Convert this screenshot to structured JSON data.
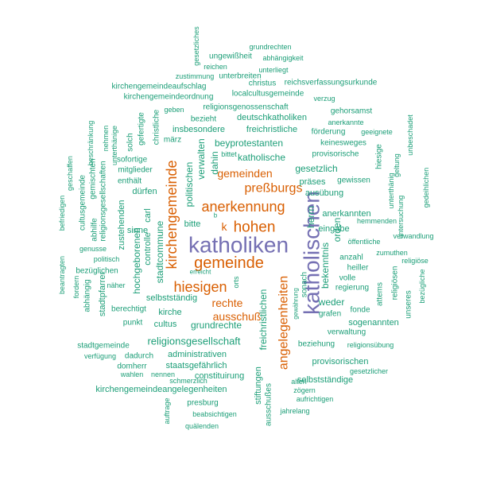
{
  "palette": {
    "green": "#1b9e77",
    "orange": "#d95f02",
    "purple": "#7570b3"
  },
  "words": [
    {
      "text": "katholiken",
      "color": "purple"
    },
    {
      "text": "katholischen",
      "color": "purple"
    },
    {
      "text": "gemeinde",
      "color": "orange"
    },
    {
      "text": "anerkennung",
      "color": "orange"
    },
    {
      "text": "kirchengemeinde",
      "color": "orange"
    },
    {
      "text": "hiesigen",
      "color": "orange"
    },
    {
      "text": "hohen",
      "color": "orange"
    },
    {
      "text": "k",
      "color": "orange"
    },
    {
      "text": "preßburgs",
      "color": "orange"
    },
    {
      "text": "gemeinden",
      "color": "orange"
    },
    {
      "text": "angelegenheiten",
      "color": "orange"
    },
    {
      "text": "rechte",
      "color": "orange"
    },
    {
      "text": "ausschuß",
      "color": "orange"
    },
    {
      "text": "grundrechten",
      "color": "green"
    },
    {
      "text": "gesetzliches",
      "color": "green"
    },
    {
      "text": "ungewißheit",
      "color": "green"
    },
    {
      "text": "abhängigkeit",
      "color": "green"
    },
    {
      "text": "reichen",
      "color": "green"
    },
    {
      "text": "unterliegt",
      "color": "green"
    },
    {
      "text": "zustimmung",
      "color": "green"
    },
    {
      "text": "unterbreiten",
      "color": "green"
    },
    {
      "text": "christus",
      "color": "green"
    },
    {
      "text": "reichsverfassungsurkunde",
      "color": "green"
    },
    {
      "text": "kirchengemeindeaufschlag",
      "color": "green"
    },
    {
      "text": "kirchengemeindeordnung",
      "color": "green"
    },
    {
      "text": "localcultusgemeinde",
      "color": "green"
    },
    {
      "text": "verzug",
      "color": "green"
    },
    {
      "text": "geben",
      "color": "green"
    },
    {
      "text": "religionsgenossenschaft",
      "color": "green"
    },
    {
      "text": "gehorsamst",
      "color": "green"
    },
    {
      "text": "bezieht",
      "color": "green"
    },
    {
      "text": "deutschkatholiken",
      "color": "green"
    },
    {
      "text": "anerkannte",
      "color": "green"
    },
    {
      "text": "insbesondere",
      "color": "green"
    },
    {
      "text": "freichristliche",
      "color": "green"
    },
    {
      "text": "förderung",
      "color": "green"
    },
    {
      "text": "geeignete",
      "color": "green"
    },
    {
      "text": "märz",
      "color": "green"
    },
    {
      "text": "beyprotestanten",
      "color": "green"
    },
    {
      "text": "keinesweges",
      "color": "green"
    },
    {
      "text": "bittet",
      "color": "green"
    },
    {
      "text": "katholische",
      "color": "green"
    },
    {
      "text": "provisorische",
      "color": "green"
    },
    {
      "text": "sofortige",
      "color": "green"
    },
    {
      "text": "mitglieder",
      "color": "green"
    },
    {
      "text": "enthält",
      "color": "green"
    },
    {
      "text": "gesetzlich",
      "color": "green"
    },
    {
      "text": "präses",
      "color": "green"
    },
    {
      "text": "gewissen",
      "color": "green"
    },
    {
      "text": "dürfen",
      "color": "green"
    },
    {
      "text": "ausübung",
      "color": "green"
    },
    {
      "text": "anerkannten",
      "color": "green"
    },
    {
      "text": "hemmenden",
      "color": "green"
    },
    {
      "text": "eingabe",
      "color": "green"
    },
    {
      "text": "öffentliche",
      "color": "green"
    },
    {
      "text": "verwandlung",
      "color": "green"
    },
    {
      "text": "sinne",
      "color": "green"
    },
    {
      "text": "bitte",
      "color": "green"
    },
    {
      "text": "b",
      "color": "green"
    },
    {
      "text": "genusse",
      "color": "green"
    },
    {
      "text": "zumuthen",
      "color": "green"
    },
    {
      "text": "politisch",
      "color": "green"
    },
    {
      "text": "anzahl",
      "color": "green"
    },
    {
      "text": "religiöse",
      "color": "green"
    },
    {
      "text": "bezüglichen",
      "color": "green"
    },
    {
      "text": "heiller",
      "color": "green"
    },
    {
      "text": "volle",
      "color": "green"
    },
    {
      "text": "näher",
      "color": "green"
    },
    {
      "text": "erreicht",
      "color": "green"
    },
    {
      "text": "selbstständig",
      "color": "green"
    },
    {
      "text": "regierung",
      "color": "green"
    },
    {
      "text": "weder",
      "color": "green"
    },
    {
      "text": "berechtigt",
      "color": "green"
    },
    {
      "text": "kirche",
      "color": "green"
    },
    {
      "text": "fonde",
      "color": "green"
    },
    {
      "text": "grafen",
      "color": "green"
    },
    {
      "text": "punkt",
      "color": "green"
    },
    {
      "text": "cultus",
      "color": "green"
    },
    {
      "text": "grundrechte",
      "color": "green"
    },
    {
      "text": "sogenannten",
      "color": "green"
    },
    {
      "text": "religionsgesellschaft",
      "color": "green"
    },
    {
      "text": "verwaltung",
      "color": "green"
    },
    {
      "text": "stadtgemeinde",
      "color": "green"
    },
    {
      "text": "beziehung",
      "color": "green"
    },
    {
      "text": "religionsübung",
      "color": "green"
    },
    {
      "text": "verfügung",
      "color": "green"
    },
    {
      "text": "dadurch",
      "color": "green"
    },
    {
      "text": "administrativen",
      "color": "green"
    },
    {
      "text": "domherr",
      "color": "green"
    },
    {
      "text": "staatsgefährlich",
      "color": "green"
    },
    {
      "text": "provisorischen",
      "color": "green"
    },
    {
      "text": "wahlen",
      "color": "green"
    },
    {
      "text": "gesetzlicher",
      "color": "green"
    },
    {
      "text": "constituirung",
      "color": "green"
    },
    {
      "text": "schmerzlich",
      "color": "green"
    },
    {
      "text": "selbstständige",
      "color": "green"
    },
    {
      "text": "kirchengemeindeangelegenheiten",
      "color": "green"
    },
    {
      "text": "zögern",
      "color": "green"
    },
    {
      "text": "aufrichtigen",
      "color": "green"
    },
    {
      "text": "presburg",
      "color": "green"
    },
    {
      "text": "jahrelang",
      "color": "green"
    },
    {
      "text": "beabsichtigen",
      "color": "green"
    },
    {
      "text": "quälenden",
      "color": "green"
    },
    {
      "text": "nennen",
      "color": "green"
    },
    {
      "text": "alten",
      "color": "green"
    },
    {
      "text": "geschaffen",
      "color": "green"
    },
    {
      "text": "beschränkung",
      "color": "green"
    },
    {
      "text": "cultusgemeinde",
      "color": "green"
    },
    {
      "text": "gemischten",
      "color": "green"
    },
    {
      "text": "religionsgesellschaften",
      "color": "green"
    },
    {
      "text": "abhilfe",
      "color": "green"
    },
    {
      "text": "nehmen",
      "color": "green"
    },
    {
      "text": "unterthänige",
      "color": "green"
    },
    {
      "text": "befriedigen",
      "color": "green"
    },
    {
      "text": "solch",
      "color": "green"
    },
    {
      "text": "gefertigte",
      "color": "green"
    },
    {
      "text": "christliche",
      "color": "green"
    },
    {
      "text": "carl",
      "color": "green"
    },
    {
      "text": "zustehenden",
      "color": "green"
    },
    {
      "text": "hochgeborenen",
      "color": "green"
    },
    {
      "text": "controlle",
      "color": "green"
    },
    {
      "text": "stadtcommune",
      "color": "green"
    },
    {
      "text": "politischen",
      "color": "green"
    },
    {
      "text": "verwalten",
      "color": "green"
    },
    {
      "text": "dahin",
      "color": "green"
    },
    {
      "text": "beantragten",
      "color": "green"
    },
    {
      "text": "fordern",
      "color": "green"
    },
    {
      "text": "abhängig",
      "color": "green"
    },
    {
      "text": "stadtpfarrer",
      "color": "green"
    },
    {
      "text": "freichristlichen",
      "color": "green"
    },
    {
      "text": "ausschußes",
      "color": "green"
    },
    {
      "text": "stiftungen",
      "color": "green"
    },
    {
      "text": "gewährung",
      "color": "green"
    },
    {
      "text": "sonach",
      "color": "green"
    },
    {
      "text": "orts",
      "color": "green"
    },
    {
      "text": "bekenntnis",
      "color": "green"
    },
    {
      "text": "herrn",
      "color": "green"
    },
    {
      "text": "orden",
      "color": "green"
    },
    {
      "text": "hiesige",
      "color": "green"
    },
    {
      "text": "attems",
      "color": "green"
    },
    {
      "text": "geltung",
      "color": "green"
    },
    {
      "text": "unbeschadet",
      "color": "green"
    },
    {
      "text": "unterthänig",
      "color": "green"
    },
    {
      "text": "untersuchung",
      "color": "green"
    },
    {
      "text": "gedeihlichen",
      "color": "green"
    },
    {
      "text": "religiösen",
      "color": "green"
    },
    {
      "text": "unseres",
      "color": "green"
    },
    {
      "text": "bezügliche",
      "color": "green"
    },
    {
      "text": "auftrage",
      "color": "green"
    }
  ]
}
